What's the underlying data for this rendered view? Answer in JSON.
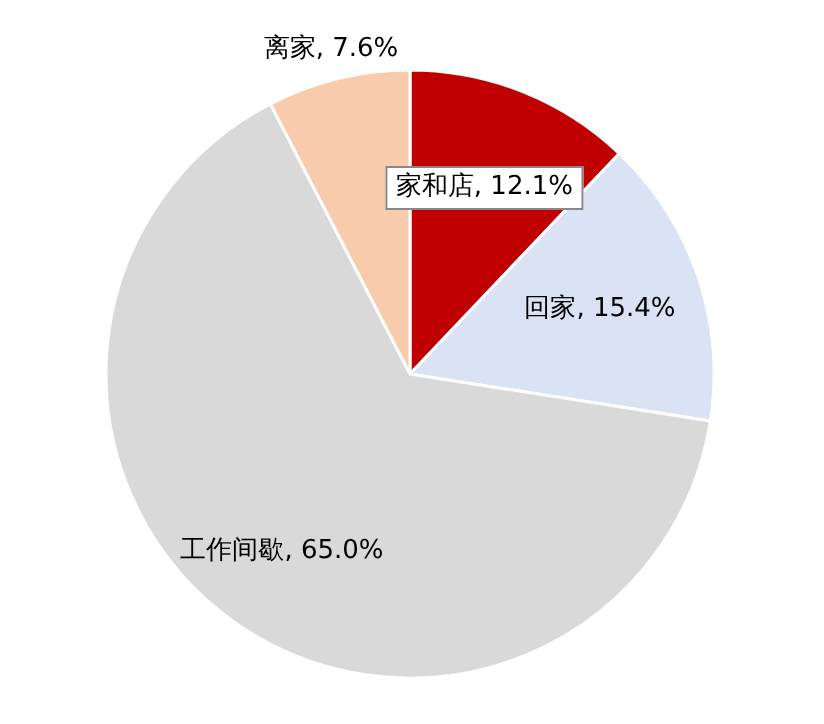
{
  "chart_data": {
    "type": "pie",
    "categories": [
      "家和店",
      "回家",
      "工作间歇",
      "离家"
    ],
    "values": [
      12.1,
      15.4,
      65.0,
      7.6
    ],
    "value_labels": [
      "12.1%",
      "15.4%",
      "65.0%",
      "7.6%"
    ],
    "colors": [
      "#c00000",
      "#dae3f3",
      "#d9d9d9",
      "#f8cbad"
    ]
  }
}
